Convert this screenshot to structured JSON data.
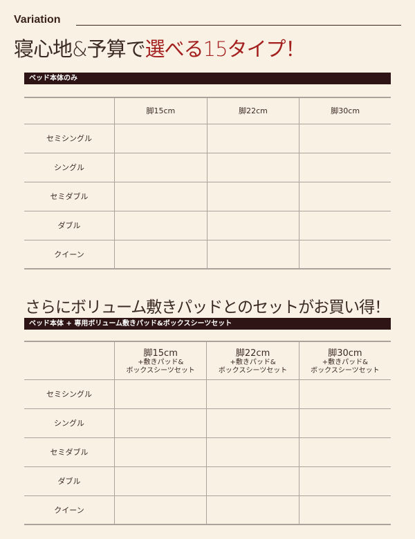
{
  "header": {
    "label": "Variation",
    "headline_plain": "寝心地&予算で",
    "headline_accent": "選べる15タイプ！"
  },
  "section1": {
    "bar": "ベッド本体のみ",
    "columns": [
      "脚15cm",
      "脚22cm",
      "脚30cm"
    ],
    "rows": [
      "セミシングル",
      "シングル",
      "セミダブル",
      "ダブル",
      "クイーン"
    ]
  },
  "section2": {
    "headline": "さらにボリューム敷きパッドとのセットがお買い得！",
    "bar": "ベッド本体 + 専用ボリューム敷きパッド&ボックスシーツセット",
    "columns": [
      {
        "leg": "脚15cm",
        "sub1": "+敷きパッド&",
        "sub2": "ボックスシーツセット"
      },
      {
        "leg": "脚22cm",
        "sub1": "+敷きパッド&",
        "sub2": "ボックスシーツセット"
      },
      {
        "leg": "脚30cm",
        "sub1": "+敷きパッド&",
        "sub2": "ボックスシーツセット"
      }
    ],
    "rows": [
      "セミシングル",
      "シングル",
      "セミダブル",
      "ダブル",
      "クイーン"
    ]
  },
  "colors": {
    "accent": "#a3201f",
    "bar": "#2e1414",
    "background": "#faf1e5"
  }
}
